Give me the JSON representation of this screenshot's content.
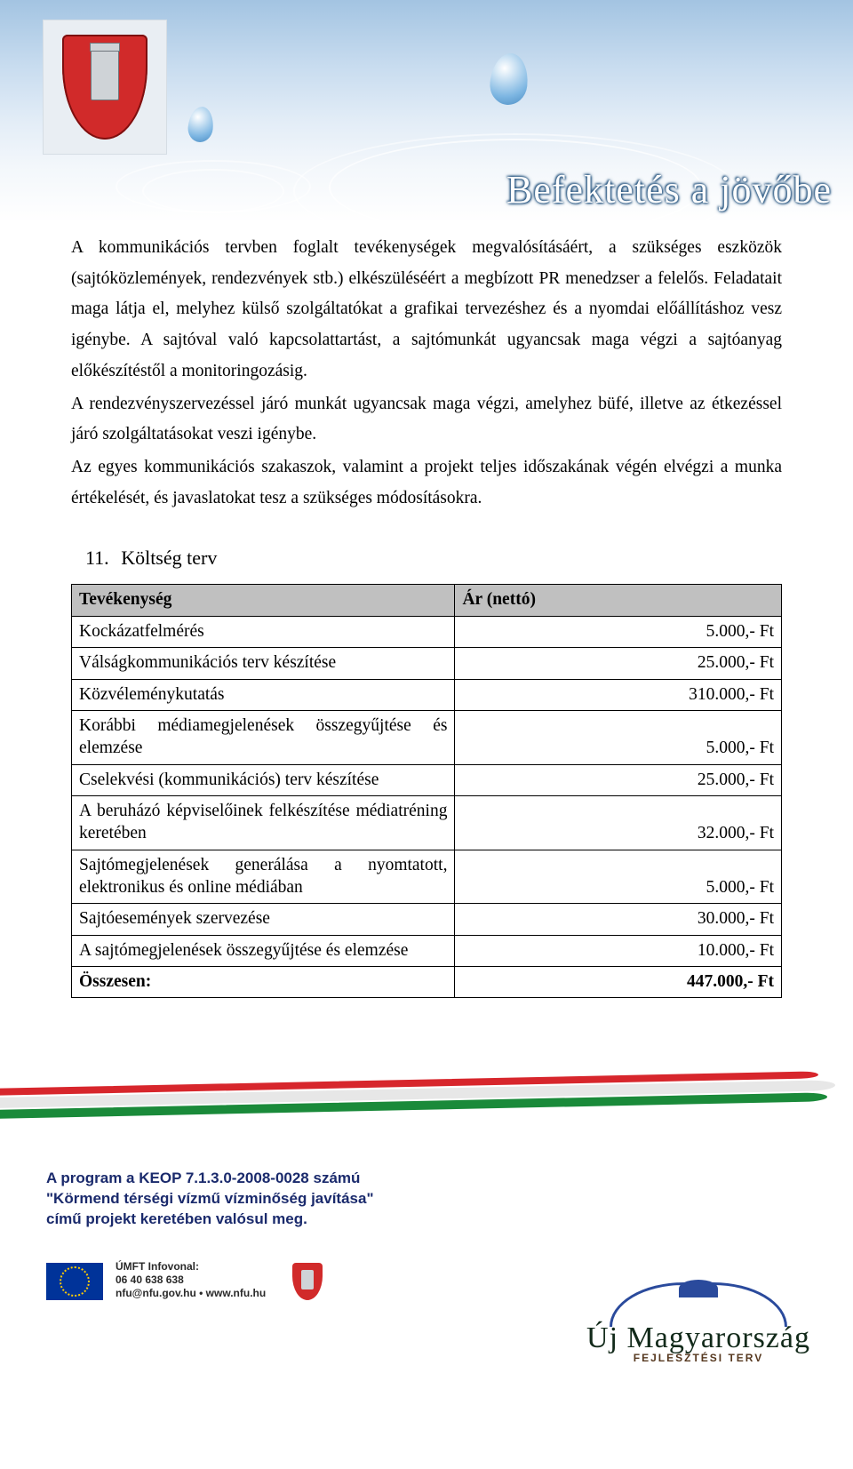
{
  "header": {
    "slogan": "Befektetés a jövőbe",
    "colors": {
      "sky_top": "#a3c4e2",
      "sky_bottom": "#ffffff",
      "crest_bg": "#d12a2a"
    }
  },
  "body": {
    "p1": "A kommunikációs tervben foglalt tevékenységek megvalósításáért, a szükséges eszközök (sajtóközlemények, rendezvények stb.) elkészüléséért a megbízott PR menedzser a felelős. Feladatait maga látja el, melyhez külső szolgáltatókat a grafikai tervezéshez és a nyomdai előállításhoz vesz igénybe. A sajtóval való kapcsolattartást, a sajtómunkát ugyancsak maga végzi a sajtóanyag előkészítéstől a monitoringozásig.",
    "p2": "A rendezvényszervezéssel járó munkát ugyancsak maga végzi, amelyhez büfé, illetve az étkezéssel járó szolgáltatásokat veszi igénybe.",
    "p3": "Az egyes kommunikációs szakaszok, valamint a projekt teljes időszakának végén elvégzi a munka értékelését, és javaslatokat tesz a szükséges módosításokra."
  },
  "section": {
    "number": "11.",
    "title": "Költség terv"
  },
  "table": {
    "header_activity": "Tevékenység",
    "header_price": "Ár (nettó)",
    "rows": [
      {
        "label": "Kockázatfelmérés",
        "price": "5.000,- Ft"
      },
      {
        "label": "Válságkommunikációs terv készítése",
        "price": "25.000,- Ft"
      },
      {
        "label": "Közvéleménykutatás",
        "price": "310.000,- Ft"
      },
      {
        "label": "Korábbi médiamegjelenések összegyűjtése és elemzése",
        "price": "5.000,- Ft"
      },
      {
        "label": "Cselekvési (kommunikációs) terv készítése",
        "price": "25.000,- Ft"
      },
      {
        "label": "A beruházó képviselőinek felkészítése médiatréning keretében",
        "price": "32.000,- Ft"
      },
      {
        "label": "Sajtómegjelenések generálása a nyomtatott, elektronikus és online médiában",
        "price": "5.000,- Ft"
      },
      {
        "label": "Sajtóesemények szervezése",
        "price": "30.000,- Ft"
      },
      {
        "label": "A sajtómegjelenések összegyűjtése és elemzése",
        "price": "10.000,- Ft"
      }
    ],
    "total_label": "Összesen:",
    "total_price": "447.000,- Ft",
    "header_bg": "#c0c0c0",
    "border_color": "#000000"
  },
  "footer": {
    "ribbon_colors": {
      "red": "#d7262c",
      "white": "#e7e7e7",
      "green": "#1a8a3a"
    },
    "program_line1": "A program a KEOP 7.1.3.0-2008-0028 számú",
    "program_line2": "\"Körmend térségi vízmű vízminőség javítása\"",
    "program_line3": "című projekt keretében valósul meg.",
    "infoline_label": "ÚMFT Infovonal:",
    "infoline_phone": "06 40 638 638",
    "infoline_email": "nfu@nfu.gov.hu • www.nfu.hu",
    "umft_title": "Új Magyarország",
    "umft_subtitle": "FEJLESZTÉSI TERV",
    "text_color": "#1a2a6c"
  }
}
